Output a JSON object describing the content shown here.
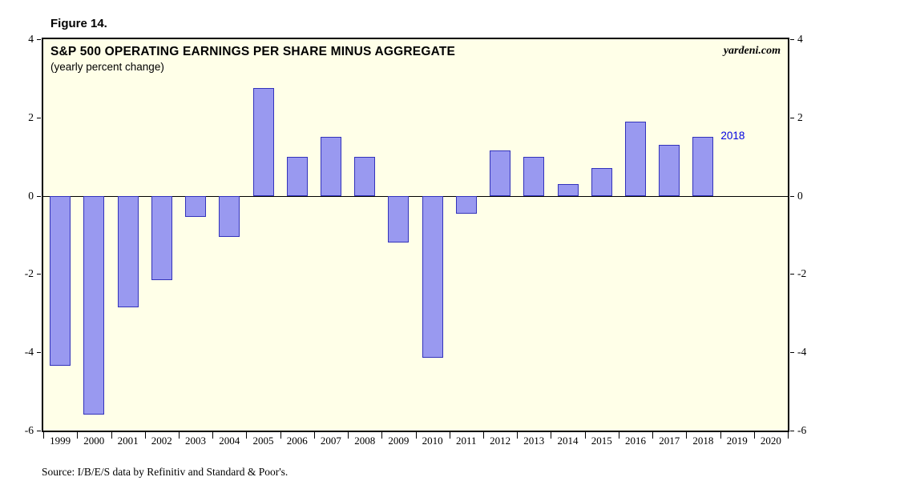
{
  "figure_label": "Figure 14.",
  "source": "Source: I/B/E/S data by Refinitiv and Standard & Poor's.",
  "chart_data": {
    "type": "bar",
    "title": "S&P 500 OPERATING EARNINGS PER SHARE MINUS AGGREGATE",
    "subtitle": "(yearly percent change)",
    "watermark": "yardeni.com",
    "categories": [
      "1999",
      "2000",
      "2001",
      "2002",
      "2003",
      "2004",
      "2005",
      "2006",
      "2007",
      "2008",
      "2009",
      "2010",
      "2011",
      "2012",
      "2013",
      "2014",
      "2015",
      "2016",
      "2017",
      "2018",
      "2019",
      "2020"
    ],
    "values": [
      -4.35,
      -5.6,
      -2.85,
      -2.15,
      -0.55,
      -1.05,
      2.75,
      1.0,
      1.5,
      1.0,
      -1.2,
      -4.15,
      -0.45,
      1.15,
      1.0,
      0.3,
      0.7,
      1.9,
      1.3,
      1.5,
      null,
      null
    ],
    "ylim": [
      -6,
      4
    ],
    "yticks": [
      4,
      2,
      0,
      -2,
      -4,
      -6
    ],
    "grid": "off",
    "annotation": {
      "text": "2018",
      "index": 19,
      "color": "#0000E0"
    },
    "colors": {
      "bar_fill": "#9999F0",
      "bar_border": "#3333BB",
      "plot_bg": "#FFFFE8",
      "frame": "#000000"
    }
  }
}
